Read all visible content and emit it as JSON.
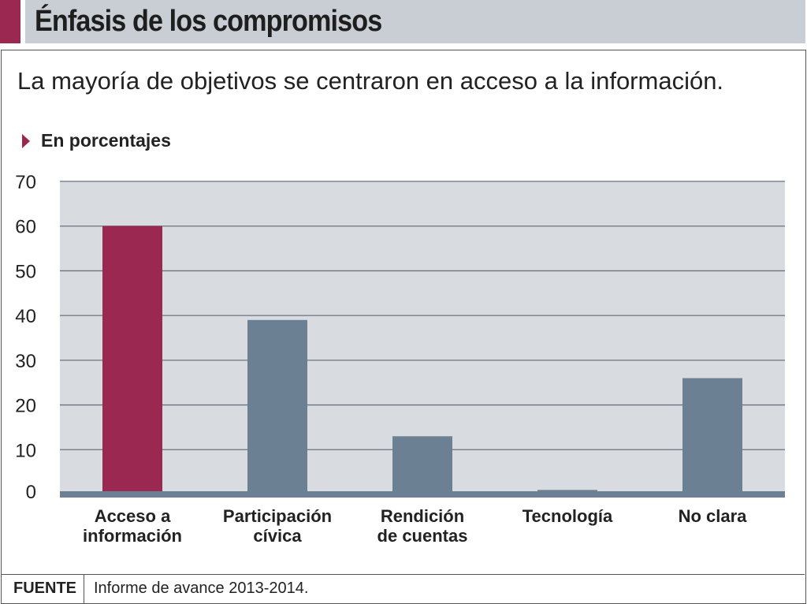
{
  "header": {
    "title": "Énfasis de los compromisos"
  },
  "subtitle": "La mayoría de objetivos se centraron en acceso a la información.",
  "unit_label": "En porcentajes",
  "footer": {
    "label": "FUENTE",
    "text": "Informe de avance 2013-2014."
  },
  "colors": {
    "highlight": "#9a2850",
    "bar": "#6b8092",
    "plot_bg": "#d8dbe0"
  },
  "chart_data": {
    "type": "bar",
    "title": "Énfasis de los compromisos",
    "categories": [
      [
        "Acceso a",
        "información"
      ],
      [
        "Participación",
        "cívica"
      ],
      [
        "Rendición",
        "de cuentas"
      ],
      [
        "Tecnología"
      ],
      [
        "No clara"
      ]
    ],
    "values": [
      60,
      39,
      13,
      1,
      26
    ],
    "highlight_index": 0,
    "ylim": [
      0,
      70
    ],
    "yticks": [
      0,
      10,
      20,
      30,
      40,
      50,
      60,
      70
    ],
    "ylabel": "En porcentajes",
    "grid": true
  }
}
